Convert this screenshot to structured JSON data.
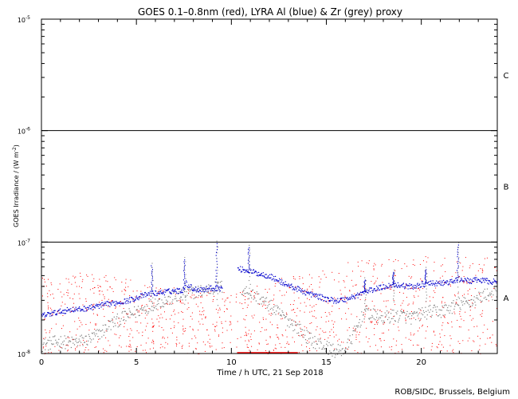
{
  "chart_data": {
    "type": "scatter",
    "title": "GOES 0.1–0.8nm (red), LYRA Al (blue) & Zr (grey) proxy",
    "xlabel": "Time / h UTC, 21 Sep 2018",
    "ylabel": "GOES Irradiance / (W m",
    "ylabel_sup": "-2",
    "ylabel_close": ")",
    "credit": "ROB/SIDC, Brussels, Belgium",
    "xlim": [
      0,
      24
    ],
    "ylim": [
      1e-08,
      1e-05
    ],
    "yscale": "log",
    "x_ticks": [
      "0",
      "5",
      "10",
      "15",
      "20"
    ],
    "x_tick_values": [
      0,
      5,
      10,
      15,
      20
    ],
    "y_ticks": [
      {
        "value": 1e-05,
        "mant": "10",
        "exp": "-5"
      },
      {
        "value": 1e-06,
        "mant": "10",
        "exp": "-6"
      },
      {
        "value": 1e-07,
        "mant": "10",
        "exp": "-7"
      },
      {
        "value": 1e-08,
        "mant": "10",
        "exp": "-8"
      }
    ],
    "flare_classes": [
      {
        "label": "C",
        "low": 1e-06,
        "high": 1e-05
      },
      {
        "label": "B",
        "low": 1e-07,
        "high": 1e-06
      },
      {
        "label": "A",
        "low": 1e-08,
        "high": 1e-07
      }
    ],
    "threshold_lines": [
      1e-06,
      1e-07
    ],
    "colors": {
      "goes": "#ff0000",
      "lyra_al": "#0000cc",
      "lyra_zr": "#7f7f7f",
      "axes": "#000000"
    },
    "series": [
      {
        "name": "LYRA Al (blue)",
        "x": [
          0,
          0.5,
          1,
          1.5,
          2,
          2.5,
          3,
          3.5,
          4,
          4.5,
          5,
          5.5,
          5.8,
          6,
          6.5,
          7,
          7.4,
          7.6,
          8,
          8.5,
          9,
          9.5,
          10,
          10.3,
          10.6,
          11,
          11.5,
          12,
          12.5,
          13,
          13.5,
          14,
          14.5,
          15,
          15.5,
          16,
          16.5,
          17,
          17.5,
          18,
          18.5,
          19,
          19.5,
          20,
          20.5,
          21,
          21.5,
          22,
          22.5,
          23,
          23.5,
          24
        ],
        "values": [
          2.2e-08,
          2.3e-08,
          2.4e-08,
          2.5e-08,
          2.5e-08,
          2.6e-08,
          2.7e-08,
          2.8e-08,
          2.9e-08,
          3e-08,
          3.2e-08,
          3.4e-08,
          3.5e-08,
          3.5e-08,
          3.6e-08,
          3.7e-08,
          3.7e-08,
          4.3e-08,
          3.8e-08,
          3.8e-08,
          3.9e-08,
          3.9e-08,
          null,
          5.8e-08,
          5.7e-08,
          5.5e-08,
          5.2e-08,
          5e-08,
          4.5e-08,
          4.1e-08,
          3.8e-08,
          3.5e-08,
          3.3e-08,
          3.1e-08,
          3e-08,
          3.1e-08,
          3.3e-08,
          3.6e-08,
          3.8e-08,
          4e-08,
          4.2e-08,
          4.1e-08,
          4e-08,
          4.2e-08,
          4.3e-08,
          4.3e-08,
          4.4e-08,
          4.7e-08,
          4.5e-08,
          4.6e-08,
          4.5e-08,
          4.4e-08
        ]
      },
      {
        "name": "LYRA Zr (grey)",
        "x": [
          0,
          0.5,
          1,
          1.5,
          2,
          2.5,
          3,
          3.5,
          4,
          4.5,
          5,
          5.5,
          6,
          6.5,
          7,
          7.5,
          8,
          8.5,
          9,
          9.5,
          10,
          10.5,
          11,
          11.5,
          12,
          12.5,
          13,
          13.5,
          14,
          14.5,
          15,
          15.5,
          16,
          16.5,
          17,
          17.5,
          18,
          18.5,
          19,
          19.5,
          20,
          20.5,
          21,
          21.5,
          22,
          22.5,
          23,
          23.5,
          24
        ],
        "values": [
          1.2e-08,
          1.25e-08,
          1.3e-08,
          1.25e-08,
          1.3e-08,
          1.35e-08,
          1.5e-08,
          1.8e-08,
          2e-08,
          2.2e-08,
          2.4e-08,
          2.6e-08,
          2.9e-08,
          3e-08,
          3.2e-08,
          3.4e-08,
          3.6e-08,
          3.7e-08,
          3.9e-08,
          4e-08,
          null,
          3.8e-08,
          3.5e-08,
          3.1e-08,
          2.7e-08,
          2.3e-08,
          2e-08,
          1.7e-08,
          1.4e-08,
          1.25e-08,
          1.15e-08,
          1.05e-08,
          1.1e-08,
          1.6e-08,
          2.4e-08,
          2.2e-08,
          2.1e-08,
          2.2e-08,
          2.2e-08,
          2.1e-08,
          2.3e-08,
          2.4e-08,
          2.4e-08,
          2.6e-08,
          2.8e-08,
          2.9e-08,
          3.2e-08,
          3.5e-08,
          3.5e-08
        ]
      },
      {
        "name": "GOES 0.1–0.8nm (red)",
        "x": [
          0,
          2,
          4,
          6,
          8,
          10,
          12,
          14,
          16,
          18,
          20,
          22,
          24
        ],
        "values": [
          1.6e-08,
          1.7e-08,
          1.6e-08,
          1.3e-08,
          1.2e-08,
          1.1e-08,
          1.4e-08,
          1.8e-08,
          2.1e-08,
          2.2e-08,
          2.4e-08,
          2.3e-08,
          2.3e-08
        ]
      }
    ],
    "spikes": [
      {
        "x": 5.8,
        "peak": 6.2e-08,
        "series": "LYRA Al (blue)"
      },
      {
        "x": 7.5,
        "peak": 7e-08,
        "series": "LYRA Al (blue)"
      },
      {
        "x": 9.2,
        "peak": 9.8e-08,
        "series": "LYRA Al (blue)"
      },
      {
        "x": 10.9,
        "peak": 9e-08,
        "series": "LYRA Al (blue)"
      },
      {
        "x": 17.0,
        "peak": 4.6e-08,
        "series": "LYRA Al (blue)"
      },
      {
        "x": 18.5,
        "peak": 5.4e-08,
        "series": "LYRA Al (blue)"
      },
      {
        "x": 20.2,
        "peak": 5.7e-08,
        "series": "LYRA Al (blue)"
      },
      {
        "x": 21.9,
        "peak": 9.5e-08,
        "series": "LYRA Al (blue)"
      }
    ]
  }
}
